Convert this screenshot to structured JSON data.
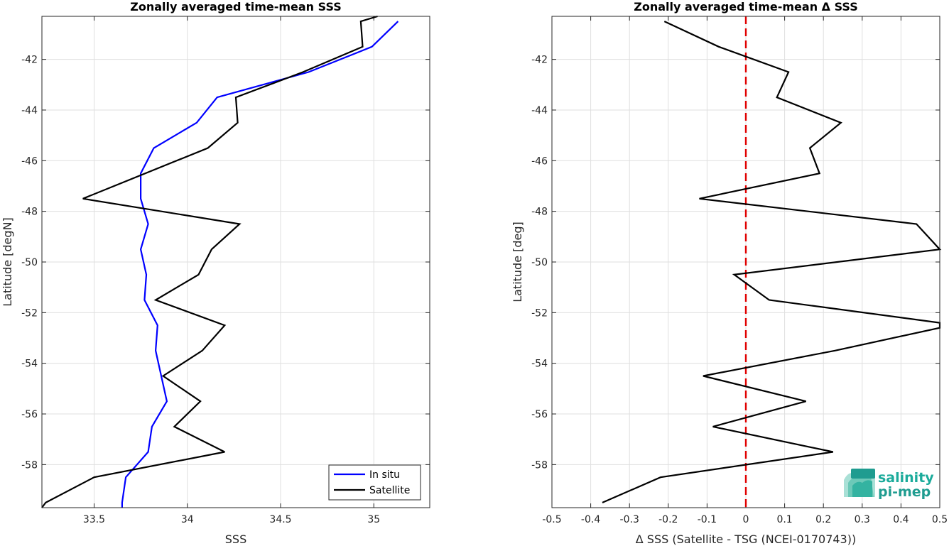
{
  "chart_data": [
    {
      "type": "line",
      "title": "Zonally averaged time-mean SSS",
      "xlabel": "SSS",
      "ylabel": "Latitude [degN]",
      "xlim": [
        33.22,
        35.3
      ],
      "ylim": [
        -59.7,
        -40.3
      ],
      "xticks": [
        "33.5",
        "34",
        "34.5",
        "35"
      ],
      "yticks": [
        "-42",
        "-44",
        "-46",
        "-48",
        "-50",
        "-52",
        "-54",
        "-56",
        "-58"
      ],
      "grid": true,
      "legend_position": "bottom-right",
      "lat": [
        -40.3,
        -40.5,
        -41.5,
        -42.5,
        -43.5,
        -44.5,
        -45.5,
        -46.5,
        -47.5,
        -48.5,
        -49.5,
        -50.5,
        -51.5,
        -52.5,
        -53.5,
        -54.5,
        -55.5,
        -56.5,
        -57.5,
        -58.5,
        -59.5,
        -59.7
      ],
      "series": [
        {
          "name": "In situ",
          "color": "#0000ff",
          "x": [
            35.13,
            34.99,
            34.65,
            34.16,
            34.05,
            33.82,
            33.75,
            33.75,
            33.79,
            33.75,
            33.78,
            33.77,
            33.84,
            33.83,
            33.86,
            33.89,
            33.81,
            33.79,
            33.67,
            33.65,
            33.65
          ],
          "y": [
            -40.5,
            -41.5,
            -42.5,
            -43.5,
            -44.5,
            -45.5,
            -46.5,
            -47.5,
            -48.5,
            -49.5,
            -50.5,
            -51.5,
            -52.5,
            -53.5,
            -54.5,
            -55.5,
            -56.5,
            -57.5,
            -58.5,
            -59.5,
            -59.7
          ]
        },
        {
          "name": "Satellite",
          "color": "#000000",
          "x": [
            35.02,
            34.93,
            34.94,
            34.62,
            34.26,
            34.27,
            34.11,
            33.44,
            34.28,
            34.13,
            34.06,
            33.83,
            34.2,
            34.08,
            33.87,
            34.07,
            33.93,
            34.2,
            33.5,
            33.24,
            33.22
          ],
          "y": [
            -40.3,
            -40.5,
            -41.5,
            -42.5,
            -43.5,
            -44.5,
            -45.5,
            -47.5,
            -48.5,
            -49.5,
            -50.5,
            -51.5,
            -52.5,
            -53.5,
            -54.5,
            -55.5,
            -56.5,
            -57.5,
            -58.5,
            -59.5,
            -59.7
          ]
        }
      ]
    },
    {
      "type": "line",
      "title": "Zonally averaged time-mean Δ SSS",
      "xlabel": "Δ SSS (Satellite - TSG (NCEI-0170743))",
      "ylabel": "Latitude [deg]",
      "xlim": [
        -0.5,
        0.5
      ],
      "ylim": [
        -59.7,
        -40.3
      ],
      "xticks": [
        "-0.5",
        "-0.4",
        "-0.3",
        "-0.2",
        "-0.1",
        "0",
        "0.1",
        "0.2",
        "0.3",
        "0.4",
        "0.5"
      ],
      "yticks": [
        "-42",
        "-44",
        "-46",
        "-48",
        "-50",
        "-52",
        "-54",
        "-56",
        "-58"
      ],
      "grid": true,
      "reference_line": {
        "x": 0,
        "color": "#e00000",
        "style": "dashed"
      },
      "series": [
        {
          "color": "#000000",
          "x": [
            -0.21,
            -0.07,
            0.11,
            0.08,
            0.245,
            0.165,
            0.19,
            -0.12,
            0.44,
            0.5,
            -0.03,
            0.06,
            0.5,
            0.5,
            0.23,
            -0.11,
            0.155,
            -0.085,
            0.225,
            -0.22,
            -0.37
          ],
          "y": [
            -40.5,
            -41.5,
            -42.5,
            -43.5,
            -44.5,
            -45.5,
            -46.5,
            -47.5,
            -48.5,
            -49.5,
            -50.5,
            -51.5,
            -52.4,
            -52.6,
            -53.5,
            -54.5,
            -55.5,
            -56.5,
            -57.5,
            -58.5,
            -59.5
          ]
        }
      ]
    }
  ],
  "logo": {
    "line1": "salinity",
    "line2": "pi-mep"
  }
}
